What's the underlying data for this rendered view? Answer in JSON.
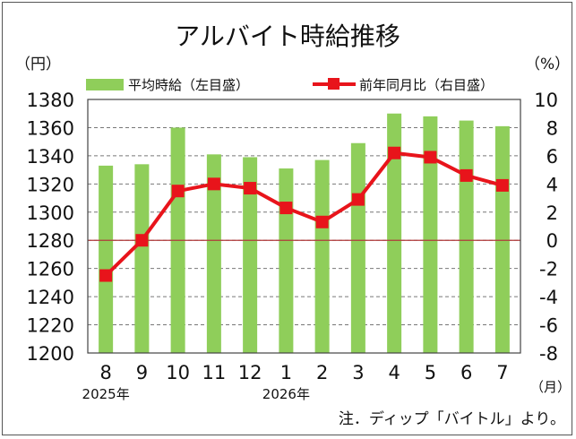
{
  "chart_data": {
    "type": "bar",
    "title": "アルバイト時給推移",
    "left_unit": "（円）",
    "right_unit": "（%）",
    "x_unit": "（月）",
    "categories": [
      "8",
      "9",
      "10",
      "11",
      "12",
      "1",
      "2",
      "3",
      "4",
      "5",
      "6",
      "7"
    ],
    "year_labels": [
      {
        "at_category": "8",
        "label": "2025年"
      },
      {
        "at_category": "1",
        "label": "2026年"
      }
    ],
    "series": [
      {
        "name": "平均時給（左目盛）",
        "type": "bar",
        "axis": "left",
        "color": "#8fce5a",
        "values": [
          1333,
          1334,
          1360,
          1341,
          1339,
          1331,
          1337,
          1349,
          1370,
          1368,
          1365,
          1361
        ]
      },
      {
        "name": "前年同月比（右目盛）",
        "type": "line",
        "axis": "right",
        "color": "#e8141b",
        "values": [
          -2.5,
          0.0,
          3.5,
          4.0,
          3.7,
          2.3,
          1.3,
          2.9,
          6.2,
          5.9,
          4.6,
          3.9
        ]
      }
    ],
    "y_left": {
      "min": 1200,
      "max": 1380,
      "step": 20
    },
    "y_right": {
      "min": -8,
      "max": 10,
      "step": 2
    },
    "grid": true,
    "legend_position": "top",
    "note": "注．ディップ「バイトル」より。"
  }
}
